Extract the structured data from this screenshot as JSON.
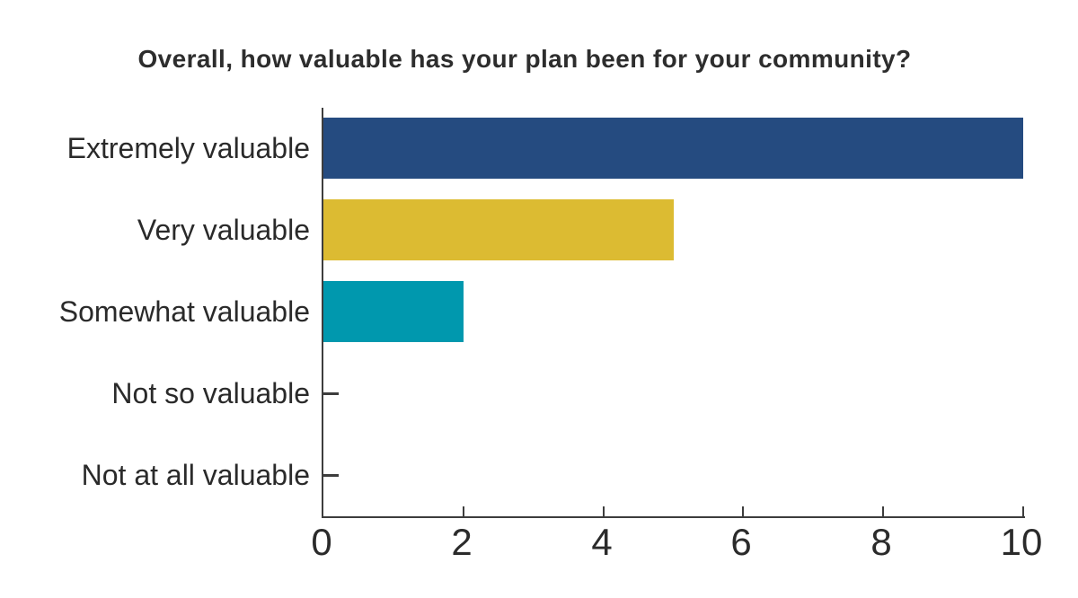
{
  "chart_data": {
    "type": "bar",
    "orientation": "horizontal",
    "title": "Overall, how valuable has your plan been for your community?",
    "categories": [
      "Extremely valuable",
      "Very valuable",
      "Somewhat valuable",
      "Not so valuable",
      "Not at all valuable"
    ],
    "values": [
      10,
      5,
      2,
      0,
      0
    ],
    "bar_colors": [
      "#254b80",
      "#dcbb32",
      "#0098ae",
      "#3d3d3d",
      "#3d3d3d"
    ],
    "xlim": [
      0,
      10
    ],
    "xticks": [
      0,
      2,
      4,
      6,
      8,
      10
    ],
    "xlabel": "",
    "ylabel": "",
    "grid": false,
    "legend": "none",
    "axis_color": "#3d3d3d",
    "text_color": "#2b2b2b",
    "title_color": "#2d2d2d",
    "background_color": "#ffffff"
  }
}
